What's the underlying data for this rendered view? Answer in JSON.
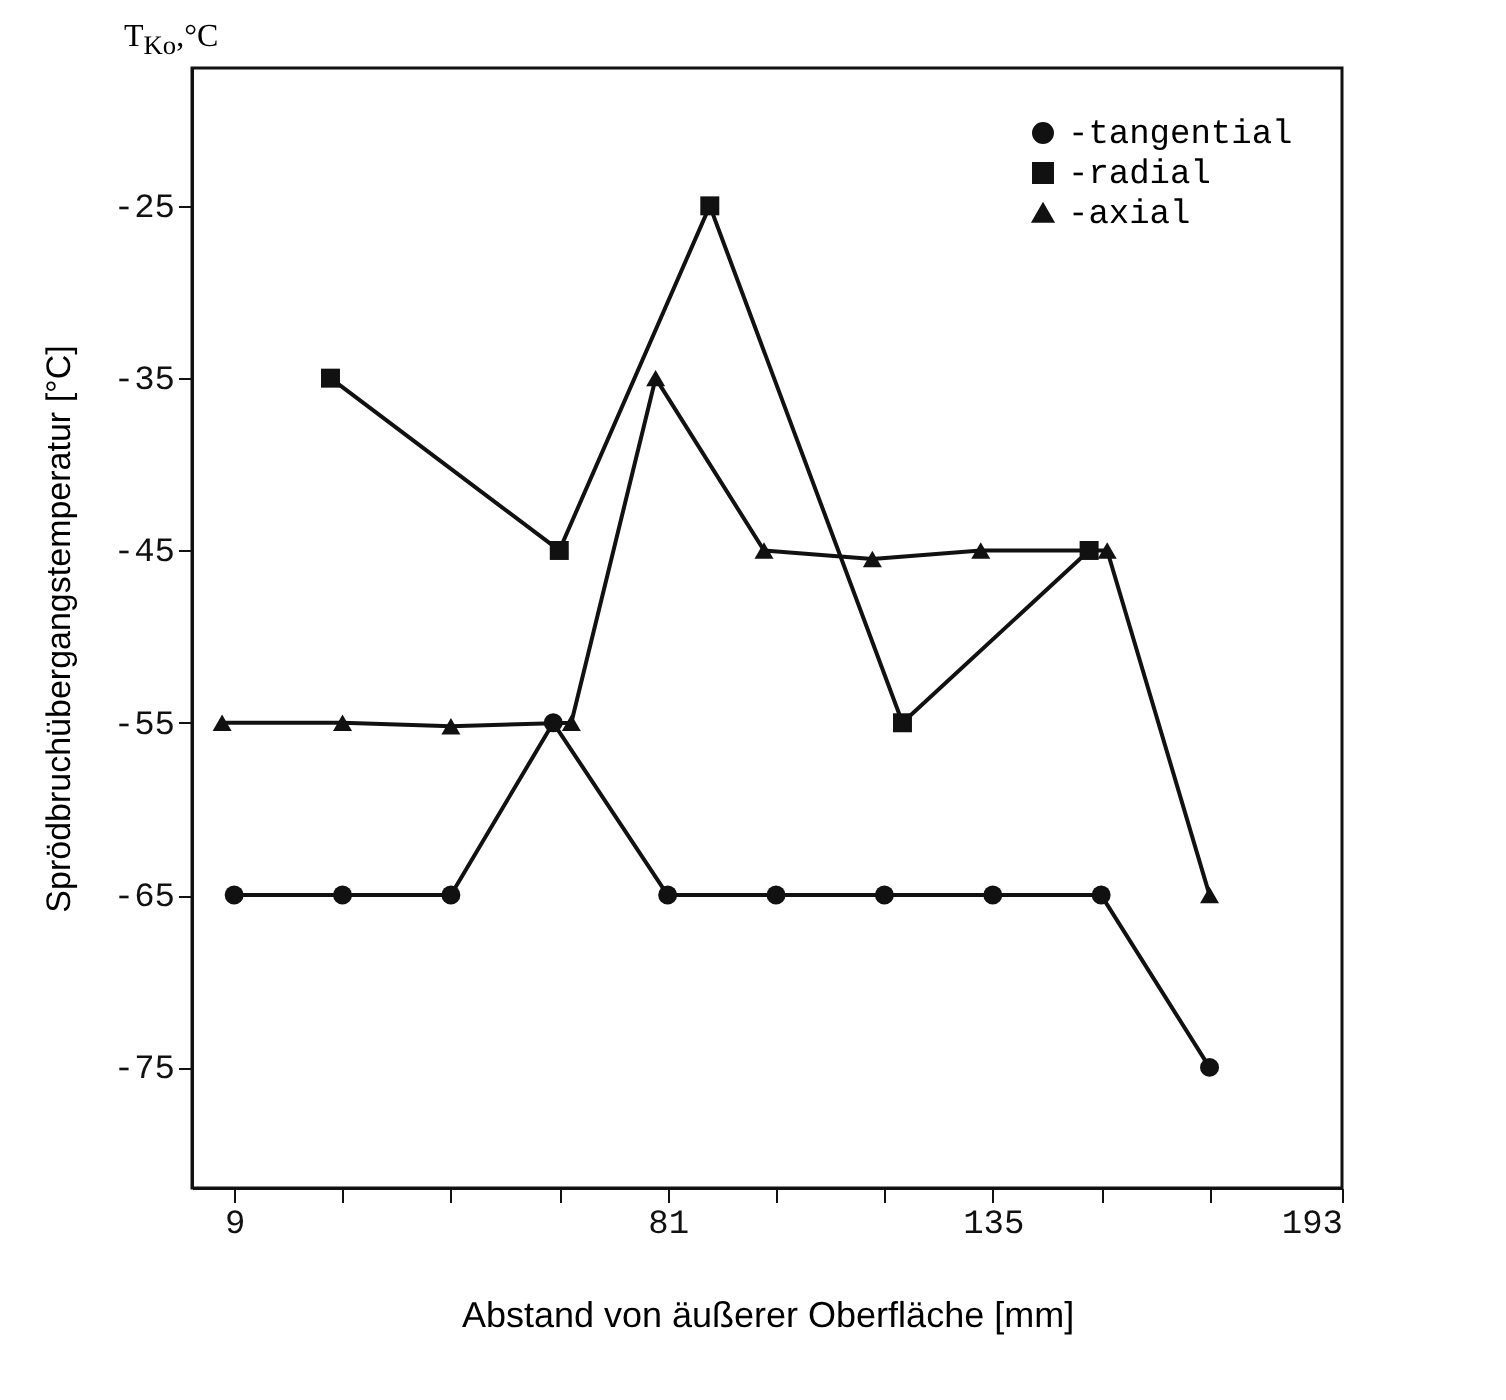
{
  "chart_data": {
    "type": "line",
    "xlabel": "Abstand von äußerer Oberfläche [mm]",
    "ylabel": "Sprödbruchübergangstemperatur [°C]",
    "annotations": [
      "T$_{Ko}$,°C"
    ],
    "xlim": [
      2,
      193
    ],
    "xticks": [
      9,
      {
        "value": 27,
        "label": null
      },
      {
        "value": 45,
        "label": null
      },
      {
        "value": 63,
        "label": null
      },
      81,
      {
        "value": 99,
        "label": null
      },
      {
        "value": 117,
        "label": null
      },
      135,
      {
        "value": 153,
        "label": null
      },
      {
        "value": 171,
        "label": null
      },
      193
    ],
    "ylim": [
      -82,
      -17
    ],
    "yticks": [
      -25,
      -35,
      -45,
      -55,
      -65,
      -75
    ],
    "grid": false,
    "legend": "top right",
    "line_style": "solid",
    "series": [
      {
        "name": "-tangential",
        "color": "#111111",
        "marker": "circle",
        "x": [
          9,
          27,
          45,
          62,
          81,
          99,
          117,
          135,
          153,
          171
        ],
        "values": [
          -65,
          -65,
          -65,
          -55,
          -65,
          -65,
          -65,
          -65,
          -65,
          -75
        ]
      },
      {
        "name": "-radial",
        "color": "#111111",
        "marker": "square",
        "x": [
          25,
          63,
          88,
          120,
          151
        ],
        "values": [
          -35,
          -45,
          -25,
          -55,
          -45
        ]
      },
      {
        "name": "-axial",
        "color": "#111111",
        "marker": "triangle",
        "x": [
          7,
          27,
          45,
          65,
          79,
          97,
          115,
          133,
          154,
          171
        ],
        "values": [
          -55,
          -55,
          -55.2,
          -55,
          -35,
          -45,
          -45.5,
          -45,
          -45,
          -65
        ]
      }
    ]
  }
}
